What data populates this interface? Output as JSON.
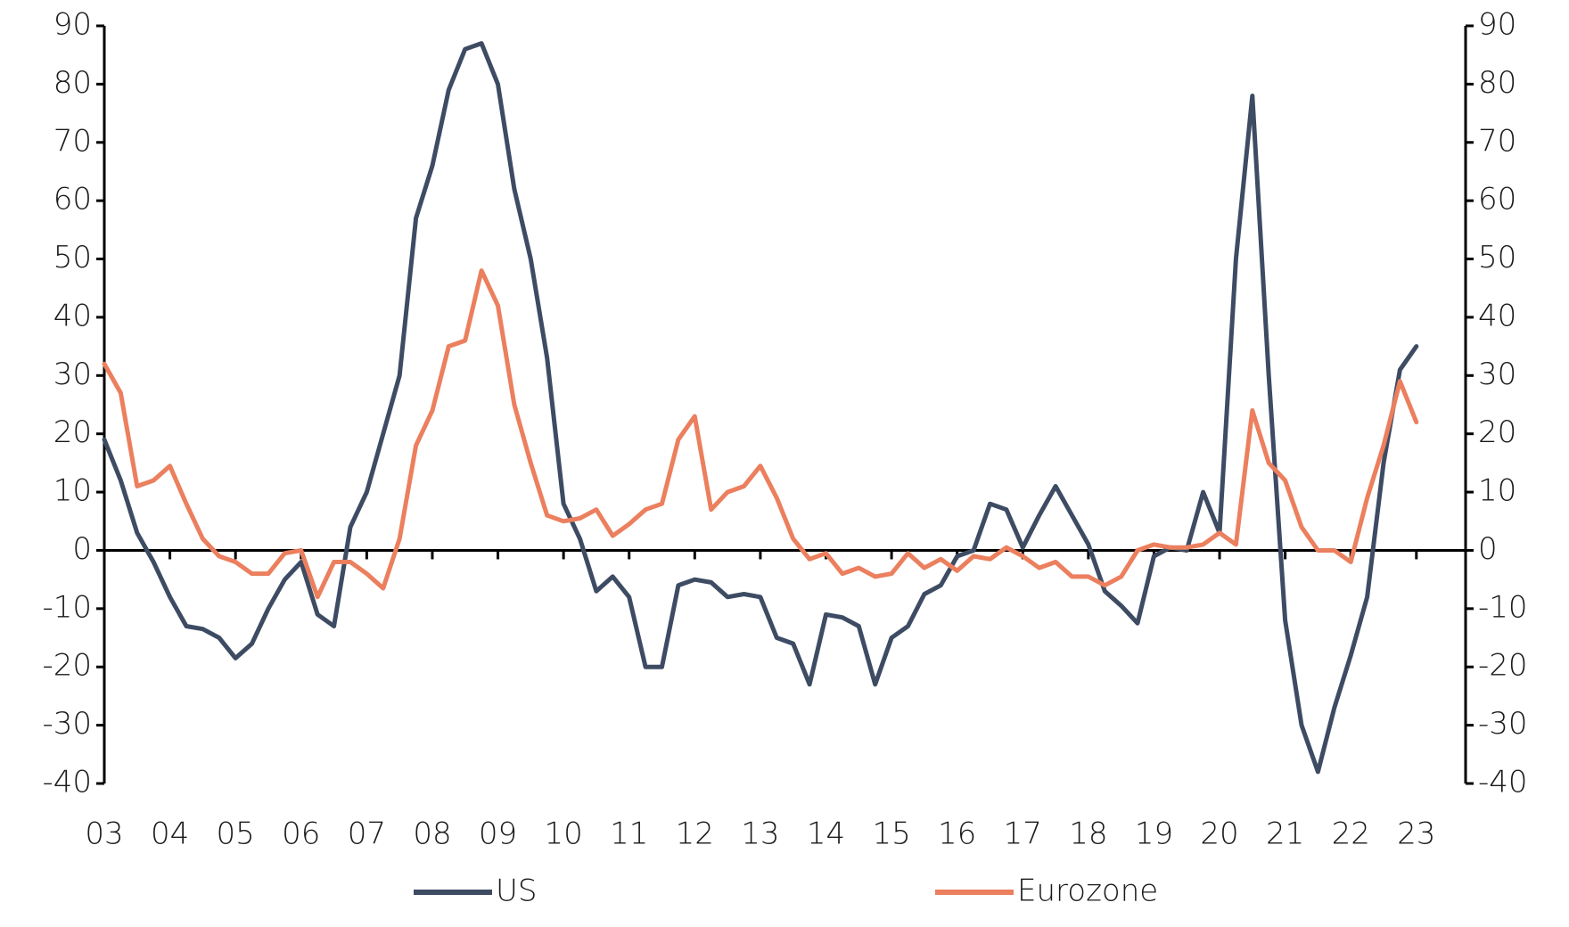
{
  "chart_data": {
    "type": "line",
    "x": [
      3,
      3.25,
      3.5,
      3.75,
      4,
      4.25,
      4.5,
      4.75,
      5,
      5.25,
      5.5,
      5.75,
      6,
      6.25,
      6.5,
      6.75,
      7,
      7.25,
      7.5,
      7.75,
      8,
      8.25,
      8.5,
      8.75,
      9,
      9.25,
      9.5,
      9.75,
      10,
      10.25,
      10.5,
      10.75,
      11,
      11.25,
      11.5,
      11.75,
      12,
      12.25,
      12.5,
      12.75,
      13,
      13.25,
      13.5,
      13.75,
      14,
      14.25,
      14.5,
      14.75,
      15,
      15.25,
      15.5,
      15.75,
      16,
      16.25,
      16.5,
      16.75,
      17,
      17.25,
      17.5,
      17.75,
      18,
      18.25,
      18.5,
      18.75,
      19,
      19.25,
      19.5,
      19.75,
      20,
      20.25,
      20.5,
      20.75,
      21,
      21.25,
      21.5,
      21.75,
      22,
      22.25,
      22.5,
      22.75,
      23
    ],
    "series": [
      {
        "name": "US",
        "color": "#3d4b63",
        "values": [
          19,
          12,
          3,
          -2,
          -8,
          -13,
          -13.5,
          -15,
          -18.5,
          -16,
          -10,
          -5,
          -2,
          -11,
          -13,
          4,
          10,
          20,
          30,
          57,
          66,
          79,
          86,
          87,
          80,
          62,
          50,
          33,
          8,
          2,
          -7,
          -4.5,
          -8,
          -20,
          -20,
          -6,
          -5,
          -5.5,
          -8,
          -7.5,
          -8,
          -15,
          -16,
          -23,
          -11,
          -11.5,
          -13,
          -23,
          -15,
          -13,
          -7.5,
          -6,
          -1,
          0,
          8,
          7,
          0.5,
          6,
          11,
          6,
          1,
          -7,
          -9.5,
          -12.5,
          -1,
          0.5,
          0,
          10,
          3,
          50,
          78,
          30,
          -12,
          -30,
          -38,
          -27,
          -18,
          -8,
          15,
          31,
          35
        ]
      },
      {
        "name": "Eurozone",
        "color": "#eb7f5e",
        "values": [
          32,
          27,
          11,
          12,
          14.5,
          8,
          2,
          -1,
          -2,
          -4,
          -4,
          -0.5,
          0,
          -8,
          -2,
          -2,
          -4,
          -6.5,
          2,
          18,
          24,
          35,
          36,
          48,
          42,
          25,
          15,
          6,
          5,
          5.5,
          7,
          2.5,
          4.5,
          7,
          8,
          19,
          23,
          7,
          10,
          11,
          14.5,
          9,
          2,
          -1.5,
          -0.5,
          -4,
          -3,
          -4.5,
          -4,
          -0.5,
          -3,
          -1.5,
          -3.5,
          -1,
          -1.5,
          0.5,
          -1,
          -3,
          -2,
          -4.5,
          -4.5,
          -6,
          -4.5,
          0,
          1,
          0.5,
          0.5,
          1,
          3,
          1,
          24,
          15,
          12,
          4,
          0,
          0,
          -2,
          9,
          18,
          29,
          22
        ]
      }
    ],
    "xlim": [
      3,
      23.75
    ],
    "xticks": [
      {
        "value": 3,
        "label": "03"
      },
      {
        "value": 4,
        "label": "04"
      },
      {
        "value": 5,
        "label": "05"
      },
      {
        "value": 6,
        "label": "06"
      },
      {
        "value": 7,
        "label": "07"
      },
      {
        "value": 8,
        "label": "08"
      },
      {
        "value": 9,
        "label": "09"
      },
      10,
      11,
      12,
      13,
      14,
      15,
      16,
      17,
      18,
      19,
      20,
      21,
      22,
      23
    ],
    "ylim": [
      -40,
      90
    ],
    "yticks": [
      -40,
      -30,
      -20,
      -10,
      0,
      10,
      20,
      30,
      40,
      50,
      60,
      70,
      80,
      90
    ],
    "y2lim": [
      -40,
      90
    ],
    "y2ticks": [
      -40,
      -30,
      -20,
      -10,
      0,
      10,
      20,
      30,
      40,
      50,
      60,
      70,
      80,
      90
    ],
    "legend": "bottom"
  }
}
